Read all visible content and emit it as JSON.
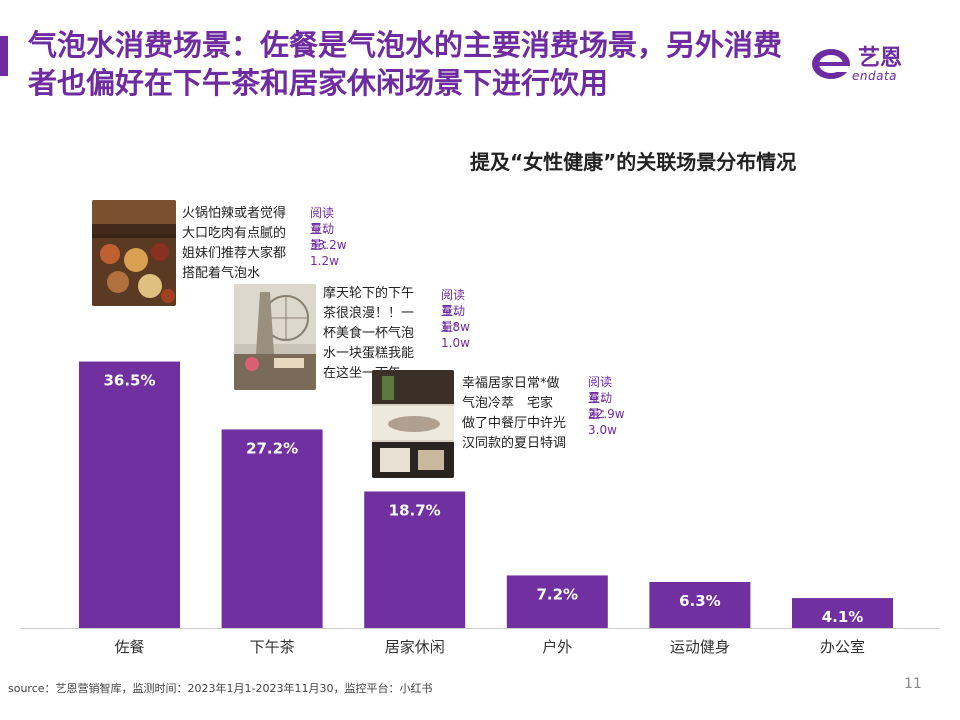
{
  "header": {
    "title": "气泡水消费场景：佐餐是气泡水的主要消费场景，另外消费者也偏好在下午茶和居家休闲场景下进行饮用",
    "logo_cn": "艺恩",
    "logo_en": "endata"
  },
  "colors": {
    "accent": "#6f2ca0",
    "bar": "#7030a0"
  },
  "chart_data": {
    "type": "bar",
    "title": "提及“女性健康”的关联场景分布情况",
    "categories": [
      "佐餐",
      "下午茶",
      "居家休闲",
      "户外",
      "运动健身",
      "办公室"
    ],
    "values": [
      36.5,
      27.2,
      18.7,
      7.2,
      6.3,
      4.1
    ],
    "value_labels": [
      "36.5%",
      "27.2%",
      "18.7%",
      "7.2%",
      "6.3%",
      "4.1%"
    ],
    "unit": "%",
    "ylim": [
      0,
      40
    ],
    "grid": false,
    "legend": "none"
  },
  "callouts": [
    {
      "note": [
        "火锅怕辣或者觉得",
        "大口吃肉有点腻的",
        "姐妹们推荐大家都",
        "搭配着气泡水"
      ],
      "reads": "阅读量：33.2w",
      "interactions": "互动量：1.2w",
      "thumb_icon": "food-photo-icon"
    },
    {
      "note": [
        "摩天轮下的下午",
        "茶很浪漫！！一",
        "杯美食一杯气泡",
        "水一块蛋糕我能",
        "在这坐一下午"
      ],
      "reads": "阅读量：1.8w",
      "interactions": "互动量：1.0w",
      "thumb_icon": "ferris-wheel-photo-icon"
    },
    {
      "note": [
        "幸福居家日常*做",
        "气泡冷萃　宅家",
        "做了中餐厅中许光",
        "汉同款的夏日特调"
      ],
      "reads": "阅读量：22.9w",
      "interactions": "互动量：3.0w",
      "thumb_icon": "home-drink-photo-icon"
    }
  ],
  "footer": {
    "source": "source：艺恩营销智库，监测时间：2023年1月1-2023年11月30，监控平台：小红书",
    "page_number": "11"
  }
}
